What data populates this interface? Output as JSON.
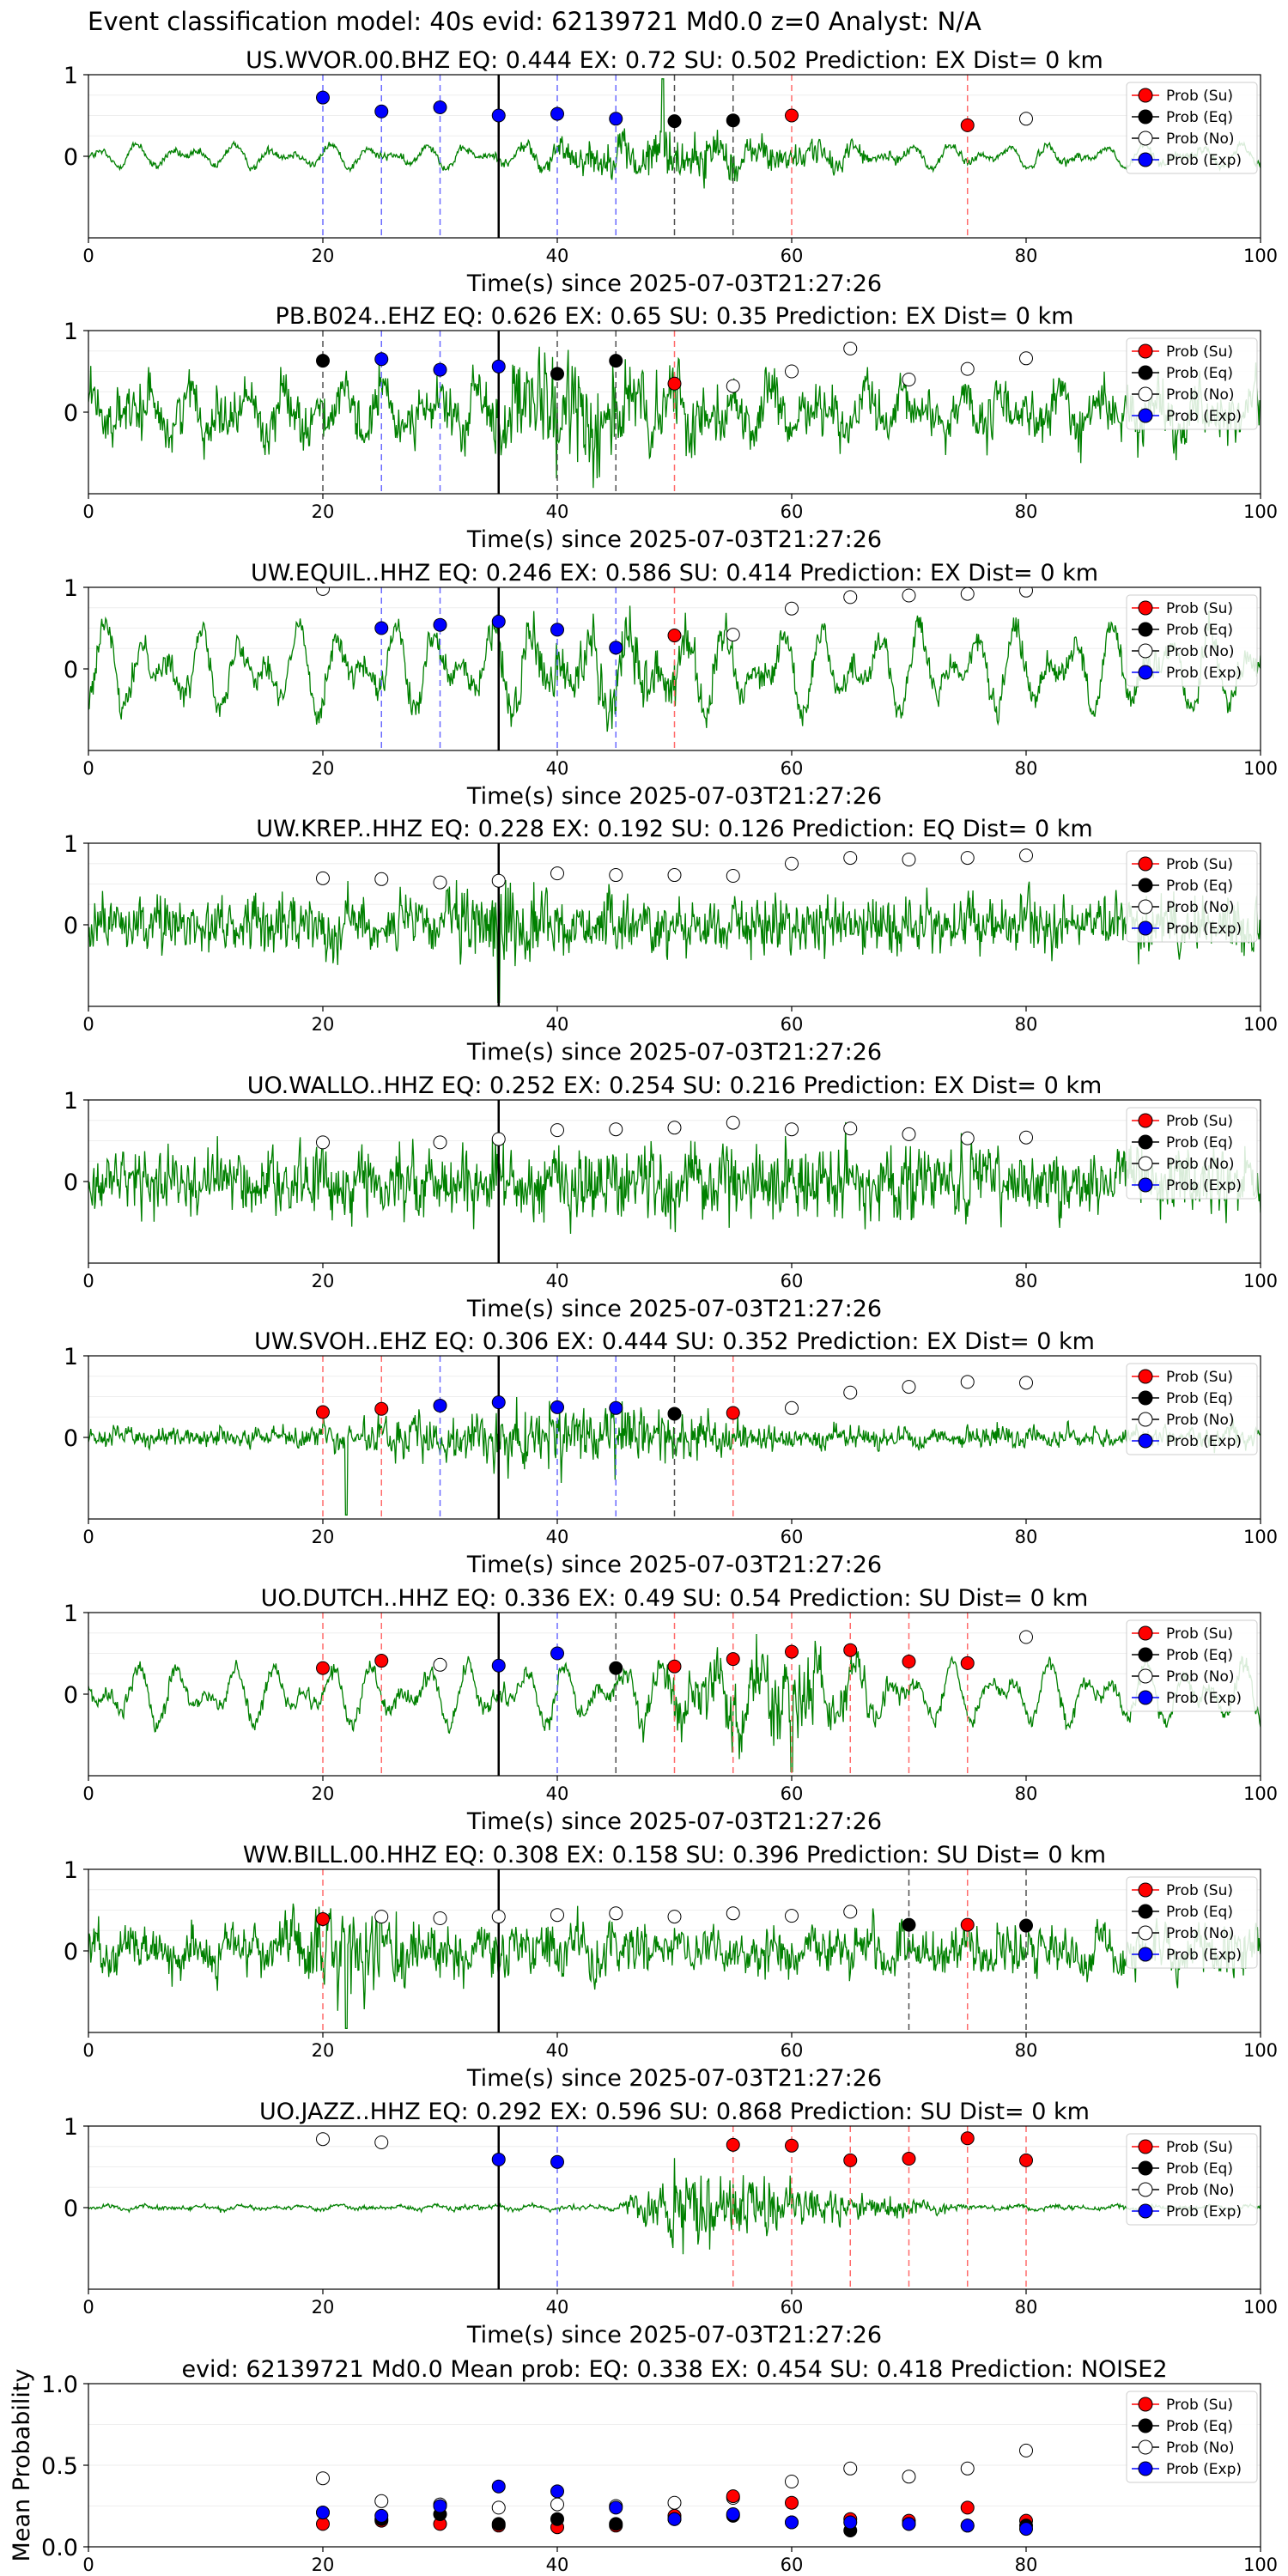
{
  "figure_title": "Event classification model: 40s evid: 62139721 Md0.0 z=0 Analyst: N/A",
  "legend_labels": [
    "Prob (Su)",
    "Prob (Eq)",
    "Prob (No)",
    "Prob (Exp)"
  ],
  "colors": {
    "su": "#ff0000",
    "eq": "#000000",
    "no": "#ffffff",
    "exp": "#0000ff",
    "trace": "#008000",
    "su_line": "#ff6b6b",
    "exp_line": "#6b6bff",
    "eq_line": "#505050"
  },
  "chart_data": [
    {
      "type": "line",
      "title": "US.WVOR.00.BHZ   EQ: 0.444  EX: 0.72  SU: 0.502   Prediction: EX    Dist= 0 km",
      "xlabel": "Time(s) since 2025-07-03T21:27:26",
      "xlim": [
        0,
        100
      ],
      "ylim": [
        -1,
        1
      ],
      "xticks": [
        0,
        20,
        40,
        60,
        80,
        100
      ],
      "yticks": [
        0,
        1
      ],
      "waveform": {
        "amp": 0.06,
        "burst_start": 35,
        "burst_peak": 49,
        "burst_end": 70,
        "burst_amp": 0.32,
        "lowfreq": 0.15,
        "spikes": [
          [
            49,
            0.95
          ]
        ]
      },
      "pick_line": 35,
      "points": [
        {
          "x": 20,
          "y": 0.72,
          "cls": "exp"
        },
        {
          "x": 25,
          "y": 0.55,
          "cls": "exp"
        },
        {
          "x": 30,
          "y": 0.6,
          "cls": "exp"
        },
        {
          "x": 35,
          "y": 0.5,
          "cls": "exp"
        },
        {
          "x": 40,
          "y": 0.52,
          "cls": "exp"
        },
        {
          "x": 45,
          "y": 0.46,
          "cls": "exp"
        },
        {
          "x": 50,
          "y": 0.43,
          "cls": "eq"
        },
        {
          "x": 55,
          "y": 0.44,
          "cls": "eq"
        },
        {
          "x": 60,
          "y": 0.5,
          "cls": "su"
        },
        {
          "x": 75,
          "y": 0.38,
          "cls": "su"
        },
        {
          "x": 80,
          "y": 0.46,
          "cls": "no"
        }
      ]
    },
    {
      "type": "line",
      "title": "PB.B024..EHZ   EQ: 0.626  EX: 0.65  SU: 0.35   Prediction: EX    Dist= 0 km",
      "xlabel": "Time(s) since 2025-07-03T21:27:26",
      "xlim": [
        0,
        100
      ],
      "ylim": [
        -1,
        1
      ],
      "xticks": [
        0,
        20,
        40,
        60,
        80,
        100
      ],
      "yticks": [
        0,
        1
      ],
      "waveform": {
        "amp": 0.35,
        "burst_start": 30,
        "burst_peak": 42,
        "burst_end": 55,
        "burst_amp": 0.5,
        "lowfreq": 0.3,
        "spikes": []
      },
      "pick_line": 35,
      "points": [
        {
          "x": 20,
          "y": 0.63,
          "cls": "eq"
        },
        {
          "x": 25,
          "y": 0.65,
          "cls": "exp"
        },
        {
          "x": 30,
          "y": 0.52,
          "cls": "exp"
        },
        {
          "x": 35,
          "y": 0.56,
          "cls": "exp"
        },
        {
          "x": 40,
          "y": 0.47,
          "cls": "eq"
        },
        {
          "x": 45,
          "y": 0.63,
          "cls": "eq"
        },
        {
          "x": 50,
          "y": 0.35,
          "cls": "su"
        },
        {
          "x": 55,
          "y": 0.32,
          "cls": "no"
        },
        {
          "x": 60,
          "y": 0.5,
          "cls": "no"
        },
        {
          "x": 65,
          "y": 0.78,
          "cls": "no"
        },
        {
          "x": 70,
          "y": 0.4,
          "cls": "no"
        },
        {
          "x": 75,
          "y": 0.53,
          "cls": "no"
        },
        {
          "x": 80,
          "y": 0.66,
          "cls": "no"
        }
      ]
    },
    {
      "type": "line",
      "title": "UW.EQUIL..HHZ   EQ: 0.246  EX: 0.586  SU: 0.414   Prediction: EX    Dist= 0 km",
      "xlabel": "Time(s) since 2025-07-03T21:27:26",
      "xlim": [
        0,
        100
      ],
      "ylim": [
        -1,
        1
      ],
      "xticks": [
        0,
        20,
        40,
        60,
        80,
        100
      ],
      "yticks": [
        0,
        1
      ],
      "waveform": {
        "amp": 0.2,
        "burst_start": 30,
        "burst_peak": 45,
        "burst_end": 60,
        "burst_amp": 0.3,
        "lowfreq": 0.55,
        "spikes": []
      },
      "pick_line": 35,
      "points": [
        {
          "x": 20,
          "y": 0.98,
          "cls": "no"
        },
        {
          "x": 25,
          "y": 0.5,
          "cls": "exp"
        },
        {
          "x": 30,
          "y": 0.54,
          "cls": "exp"
        },
        {
          "x": 35,
          "y": 0.58,
          "cls": "exp"
        },
        {
          "x": 40,
          "y": 0.48,
          "cls": "exp"
        },
        {
          "x": 45,
          "y": 0.26,
          "cls": "exp"
        },
        {
          "x": 50,
          "y": 0.41,
          "cls": "su"
        },
        {
          "x": 55,
          "y": 0.42,
          "cls": "no"
        },
        {
          "x": 60,
          "y": 0.74,
          "cls": "no"
        },
        {
          "x": 65,
          "y": 0.88,
          "cls": "no"
        },
        {
          "x": 70,
          "y": 0.9,
          "cls": "no"
        },
        {
          "x": 75,
          "y": 0.92,
          "cls": "no"
        },
        {
          "x": 80,
          "y": 0.96,
          "cls": "no"
        }
      ]
    },
    {
      "type": "line",
      "title": "UW.KREP..HHZ   EQ: 0.228  EX: 0.192  SU: 0.126   Prediction: EQ    Dist= 0 km",
      "xlabel": "Time(s) since 2025-07-03T21:27:26",
      "xlim": [
        0,
        100
      ],
      "ylim": [
        -1,
        1
      ],
      "xticks": [
        0,
        20,
        40,
        60,
        80,
        100
      ],
      "yticks": [
        0,
        1
      ],
      "waveform": {
        "amp": 0.4,
        "burst_start": 30,
        "burst_peak": 35,
        "burst_end": 40,
        "burst_amp": 0.3,
        "lowfreq": 0.1,
        "spikes": [
          [
            35,
            -0.95
          ]
        ]
      },
      "pick_line": 35,
      "points": [
        {
          "x": 20,
          "y": 0.57,
          "cls": "no"
        },
        {
          "x": 25,
          "y": 0.56,
          "cls": "no"
        },
        {
          "x": 30,
          "y": 0.52,
          "cls": "no"
        },
        {
          "x": 35,
          "y": 0.54,
          "cls": "no"
        },
        {
          "x": 40,
          "y": 0.63,
          "cls": "no"
        },
        {
          "x": 45,
          "y": 0.61,
          "cls": "no"
        },
        {
          "x": 50,
          "y": 0.61,
          "cls": "no"
        },
        {
          "x": 55,
          "y": 0.6,
          "cls": "no"
        },
        {
          "x": 60,
          "y": 0.75,
          "cls": "no"
        },
        {
          "x": 65,
          "y": 0.82,
          "cls": "no"
        },
        {
          "x": 70,
          "y": 0.8,
          "cls": "no"
        },
        {
          "x": 75,
          "y": 0.82,
          "cls": "no"
        },
        {
          "x": 80,
          "y": 0.85,
          "cls": "no"
        }
      ]
    },
    {
      "type": "line",
      "title": "UO.WALLO..HHZ   EQ: 0.252  EX: 0.254  SU: 0.216   Prediction: EX    Dist= 0 km",
      "xlabel": "Time(s) since 2025-07-03T21:27:26",
      "xlim": [
        0,
        100
      ],
      "ylim": [
        -1,
        1
      ],
      "xticks": [
        0,
        20,
        40,
        60,
        80,
        100
      ],
      "yticks": [
        0,
        1
      ],
      "waveform": {
        "amp": 0.45,
        "burst_start": 0,
        "burst_peak": 50,
        "burst_end": 100,
        "burst_amp": 0.1,
        "lowfreq": 0.1,
        "spikes": []
      },
      "pick_line": 35,
      "points": [
        {
          "x": 20,
          "y": 0.48,
          "cls": "no"
        },
        {
          "x": 30,
          "y": 0.48,
          "cls": "no"
        },
        {
          "x": 35,
          "y": 0.52,
          "cls": "no"
        },
        {
          "x": 40,
          "y": 0.63,
          "cls": "no"
        },
        {
          "x": 45,
          "y": 0.64,
          "cls": "no"
        },
        {
          "x": 50,
          "y": 0.66,
          "cls": "no"
        },
        {
          "x": 55,
          "y": 0.72,
          "cls": "no"
        },
        {
          "x": 60,
          "y": 0.64,
          "cls": "no"
        },
        {
          "x": 65,
          "y": 0.65,
          "cls": "no"
        },
        {
          "x": 70,
          "y": 0.58,
          "cls": "no"
        },
        {
          "x": 75,
          "y": 0.53,
          "cls": "no"
        },
        {
          "x": 80,
          "y": 0.54,
          "cls": "no"
        }
      ]
    },
    {
      "type": "line",
      "title": "UW.SVOH..EHZ   EQ: 0.306  EX: 0.444  SU: 0.352   Prediction: EX    Dist= 0 km",
      "xlabel": "Time(s) since 2025-07-03T21:27:26",
      "xlim": [
        0,
        100
      ],
      "ylim": [
        -1,
        1
      ],
      "xticks": [
        0,
        20,
        40,
        60,
        80,
        100
      ],
      "yticks": [
        0,
        1
      ],
      "waveform": {
        "amp": 0.15,
        "burst_start": 15,
        "burst_peak": 45,
        "burst_end": 60,
        "burst_amp": 0.35,
        "lowfreq": 0.05,
        "spikes": [
          [
            22,
            -0.95
          ]
        ]
      },
      "pick_line": 35,
      "points": [
        {
          "x": 20,
          "y": 0.31,
          "cls": "su"
        },
        {
          "x": 25,
          "y": 0.35,
          "cls": "su"
        },
        {
          "x": 30,
          "y": 0.39,
          "cls": "exp"
        },
        {
          "x": 35,
          "y": 0.43,
          "cls": "exp"
        },
        {
          "x": 40,
          "y": 0.37,
          "cls": "exp"
        },
        {
          "x": 45,
          "y": 0.36,
          "cls": "exp"
        },
        {
          "x": 50,
          "y": 0.29,
          "cls": "eq"
        },
        {
          "x": 55,
          "y": 0.3,
          "cls": "su"
        },
        {
          "x": 60,
          "y": 0.36,
          "cls": "no"
        },
        {
          "x": 65,
          "y": 0.55,
          "cls": "no"
        },
        {
          "x": 70,
          "y": 0.62,
          "cls": "no"
        },
        {
          "x": 75,
          "y": 0.68,
          "cls": "no"
        },
        {
          "x": 80,
          "y": 0.67,
          "cls": "no"
        }
      ]
    },
    {
      "type": "line",
      "title": "UO.DUTCH..HHZ   EQ: 0.336  EX: 0.49  SU: 0.54   Prediction: SU    Dist= 0 km",
      "xlabel": "Time(s) since 2025-07-03T21:27:26",
      "xlim": [
        0,
        100
      ],
      "ylim": [
        -1,
        1
      ],
      "xticks": [
        0,
        20,
        40,
        60,
        80,
        100
      ],
      "yticks": [
        0,
        1
      ],
      "waveform": {
        "amp": 0.12,
        "burst_start": 45,
        "burst_peak": 58,
        "burst_end": 70,
        "burst_amp": 0.5,
        "lowfreq": 0.4,
        "spikes": [
          [
            60,
            -0.95
          ]
        ]
      },
      "pick_line": 35,
      "points": [
        {
          "x": 20,
          "y": 0.32,
          "cls": "su"
        },
        {
          "x": 25,
          "y": 0.41,
          "cls": "su"
        },
        {
          "x": 30,
          "y": 0.36,
          "cls": "no"
        },
        {
          "x": 35,
          "y": 0.35,
          "cls": "exp"
        },
        {
          "x": 40,
          "y": 0.5,
          "cls": "exp"
        },
        {
          "x": 45,
          "y": 0.32,
          "cls": "eq"
        },
        {
          "x": 50,
          "y": 0.34,
          "cls": "su"
        },
        {
          "x": 55,
          "y": 0.43,
          "cls": "su"
        },
        {
          "x": 60,
          "y": 0.52,
          "cls": "su"
        },
        {
          "x": 65,
          "y": 0.54,
          "cls": "su"
        },
        {
          "x": 70,
          "y": 0.4,
          "cls": "su"
        },
        {
          "x": 75,
          "y": 0.38,
          "cls": "su"
        },
        {
          "x": 80,
          "y": 0.7,
          "cls": "no"
        }
      ]
    },
    {
      "type": "line",
      "title": "WW.BILL.00.HHZ   EQ: 0.308  EX: 0.158  SU: 0.396   Prediction: SU    Dist= 0 km",
      "xlabel": "Time(s) since 2025-07-03T21:27:26",
      "xlim": [
        0,
        100
      ],
      "ylim": [
        -1,
        1
      ],
      "xticks": [
        0,
        20,
        40,
        60,
        80,
        100
      ],
      "yticks": [
        0,
        1
      ],
      "waveform": {
        "amp": 0.35,
        "burst_start": 15,
        "burst_peak": 22,
        "burst_end": 30,
        "burst_amp": 0.3,
        "lowfreq": 0.15,
        "spikes": [
          [
            22,
            -0.95
          ]
        ]
      },
      "pick_line": 35,
      "points": [
        {
          "x": 20,
          "y": 0.39,
          "cls": "su"
        },
        {
          "x": 25,
          "y": 0.42,
          "cls": "no"
        },
        {
          "x": 30,
          "y": 0.4,
          "cls": "no"
        },
        {
          "x": 35,
          "y": 0.42,
          "cls": "no"
        },
        {
          "x": 40,
          "y": 0.44,
          "cls": "no"
        },
        {
          "x": 45,
          "y": 0.46,
          "cls": "no"
        },
        {
          "x": 50,
          "y": 0.42,
          "cls": "no"
        },
        {
          "x": 55,
          "y": 0.46,
          "cls": "no"
        },
        {
          "x": 60,
          "y": 0.43,
          "cls": "no"
        },
        {
          "x": 65,
          "y": 0.48,
          "cls": "no"
        },
        {
          "x": 70,
          "y": 0.32,
          "cls": "eq"
        },
        {
          "x": 75,
          "y": 0.32,
          "cls": "su"
        },
        {
          "x": 80,
          "y": 0.31,
          "cls": "eq"
        }
      ]
    },
    {
      "type": "line",
      "title": "UO.JAZZ..HHZ   EQ: 0.292  EX: 0.596  SU: 0.868   Prediction: SU    Dist= 0 km",
      "xlabel": "Time(s) since 2025-07-03T21:27:26",
      "xlim": [
        0,
        100
      ],
      "ylim": [
        -1,
        1
      ],
      "xticks": [
        0,
        20,
        40,
        60,
        80,
        100
      ],
      "yticks": [
        0,
        1
      ],
      "waveform": {
        "amp": 0.03,
        "burst_start": 45,
        "burst_peak": 50,
        "burst_end": 75,
        "burst_amp": 0.55,
        "lowfreq": 0.03,
        "spikes": []
      },
      "pick_line": 35,
      "points": [
        {
          "x": 20,
          "y": 0.84,
          "cls": "no"
        },
        {
          "x": 25,
          "y": 0.8,
          "cls": "no"
        },
        {
          "x": 35,
          "y": 0.59,
          "cls": "exp"
        },
        {
          "x": 40,
          "y": 0.56,
          "cls": "exp"
        },
        {
          "x": 55,
          "y": 0.77,
          "cls": "su"
        },
        {
          "x": 60,
          "y": 0.76,
          "cls": "su"
        },
        {
          "x": 65,
          "y": 0.58,
          "cls": "su"
        },
        {
          "x": 70,
          "y": 0.6,
          "cls": "su"
        },
        {
          "x": 75,
          "y": 0.85,
          "cls": "su"
        },
        {
          "x": 80,
          "y": 0.58,
          "cls": "su"
        }
      ]
    },
    {
      "type": "scatter",
      "title": "evid: 62139721  Md0.0   Mean prob:   EQ: 0.338  EX: 0.454  SU: 0.418   Prediction: NOISE2",
      "xlabel": "",
      "ylabel": "Mean Probability",
      "xlim": [
        0,
        100
      ],
      "ylim": [
        0,
        1
      ],
      "xticks": [
        0,
        20,
        40,
        60,
        80,
        100
      ],
      "yticks": [
        0.0,
        0.5,
        1.0
      ],
      "x": [
        20,
        25,
        30,
        35,
        40,
        45,
        50,
        55,
        60,
        65,
        70,
        75,
        80
      ],
      "series": [
        {
          "name": "Prob (No)",
          "cls": "no",
          "values": [
            0.42,
            0.28,
            0.26,
            0.24,
            0.26,
            0.25,
            0.27,
            0.3,
            0.4,
            0.48,
            0.43,
            0.48,
            0.59
          ]
        },
        {
          "name": "Prob (Su)",
          "cls": "su",
          "values": [
            0.14,
            0.16,
            0.14,
            0.13,
            0.12,
            0.13,
            0.19,
            0.31,
            0.27,
            0.17,
            0.16,
            0.24,
            0.16
          ]
        },
        {
          "name": "Prob (Eq)",
          "cls": "eq",
          "values": [
            0.21,
            0.17,
            0.2,
            0.14,
            0.17,
            0.14,
            0.17,
            0.19,
            0.15,
            0.1,
            0.14,
            0.13,
            0.13
          ]
        },
        {
          "name": "Prob (Exp)",
          "cls": "exp",
          "values": [
            0.21,
            0.19,
            0.25,
            0.37,
            0.34,
            0.24,
            0.17,
            0.2,
            0.15,
            0.15,
            0.14,
            0.13,
            0.11
          ]
        }
      ]
    }
  ]
}
